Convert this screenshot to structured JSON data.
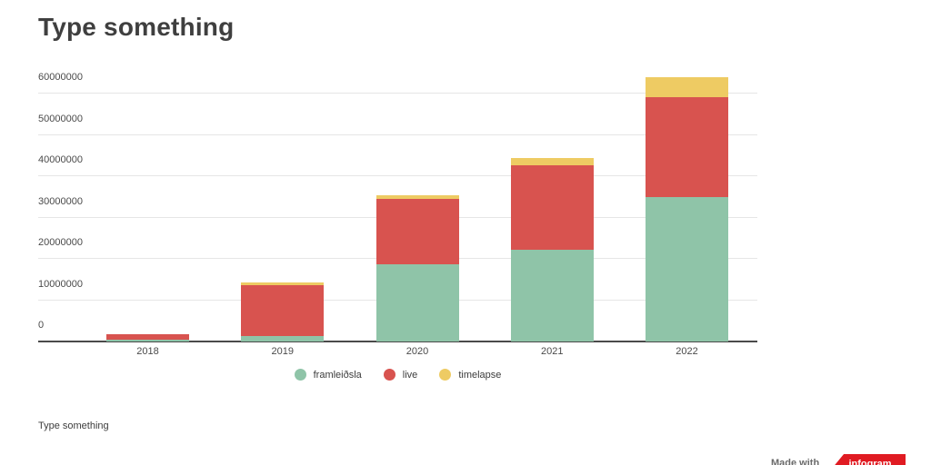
{
  "title": "Type something",
  "footer_caption": "Type something",
  "attribution": {
    "made_with": "Made with",
    "brand": "infogram"
  },
  "colors": {
    "framleidsla": "#8FC4A8",
    "live": "#D8534F",
    "timelapse": "#EECB63",
    "badge_red": "#E01B22",
    "title_text": "#3F3F3F",
    "axis_text": "#4A4A4A",
    "gridline": "#E6E6E6",
    "axis_line": "#4A4A4A"
  },
  "legend": {
    "items": [
      {
        "label": "framleiðsla",
        "color": "#8FC4A8"
      },
      {
        "label": "live",
        "color": "#D8534F"
      },
      {
        "label": "timelapse",
        "color": "#EECB63"
      }
    ]
  },
  "chart_data": {
    "type": "bar",
    "stacked": true,
    "title": "Type something",
    "xlabel": "",
    "ylabel": "",
    "categories": [
      "2018",
      "2019",
      "2020",
      "2021",
      "2022"
    ],
    "series": [
      {
        "name": "framleiðsla",
        "color": "#8FC4A8",
        "values": [
          500000,
          1300000,
          18700000,
          22200000,
          35000000
        ]
      },
      {
        "name": "live",
        "color": "#D8534F",
        "values": [
          1200000,
          12300000,
          15800000,
          20400000,
          24200000
        ]
      },
      {
        "name": "timelapse",
        "color": "#EECB63",
        "values": [
          0,
          800000,
          900000,
          1700000,
          4700000
        ]
      }
    ],
    "stack_totals": [
      1700000,
      14400000,
      35400000,
      44300000,
      63900000
    ],
    "ylim": [
      0,
      60000000
    ],
    "ytick_interval": 10000000,
    "ytick_labels": [
      "0",
      "10000000",
      "20000000",
      "30000000",
      "40000000",
      "50000000",
      "60000000"
    ],
    "grid": true,
    "legend_position": "bottom"
  }
}
